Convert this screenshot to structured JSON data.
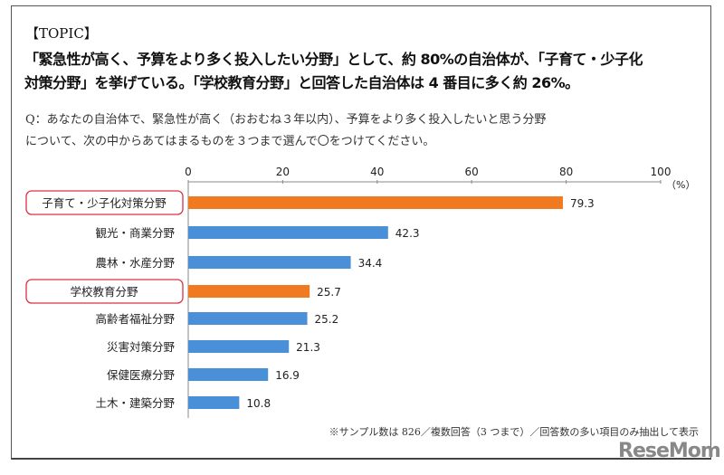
{
  "topic": "【TOPIC】",
  "headline": [
    "「緊急性が高く、予算をより多く投入したい分野」として、約 80%の自治体が、「子育て・少子化",
    "対策分野」を挙げている。「学校教育分野」と回答した自治体は 4 番目に多く約 26%。"
  ],
  "question": [
    "Q：あなたの自治体で、緊急性が高く（おおむね３年以内）、予算をより多く投入したいと思う分野",
    "について、次の中からあてはまるものを３つまで選んで〇をつけてください。"
  ],
  "note": "※サンプル数は 826／複数回答（3 つまで）／回答数の多い項目のみ抽出して表示",
  "logo": "ReseMom",
  "chart_data": {
    "type": "bar",
    "orientation": "horizontal",
    "unit_label": "（%）",
    "xlim": [
      0,
      100
    ],
    "ticks": [
      "0",
      "20",
      "40",
      "60",
      "80",
      "100"
    ],
    "categories": [
      "子育て・少子化対策分野",
      "観光・商業分野",
      "農林・水産分野",
      "学校教育分野",
      "高齢者福祉分野",
      "災害対策分野",
      "保健医療分野",
      "土木・建築分野"
    ],
    "values": [
      79.3,
      42.3,
      34.4,
      25.7,
      25.2,
      21.3,
      16.9,
      10.8
    ],
    "labels": [
      "79.3",
      "42.3",
      "34.4",
      "25.7",
      "25.2",
      "21.3",
      "16.9",
      "10.8"
    ],
    "highlighted": [
      true,
      false,
      false,
      true,
      false,
      false,
      false,
      false
    ],
    "colors": {
      "highlight": "#F07A20",
      "normal": "#4A90D9",
      "box": "#D9333F"
    }
  }
}
